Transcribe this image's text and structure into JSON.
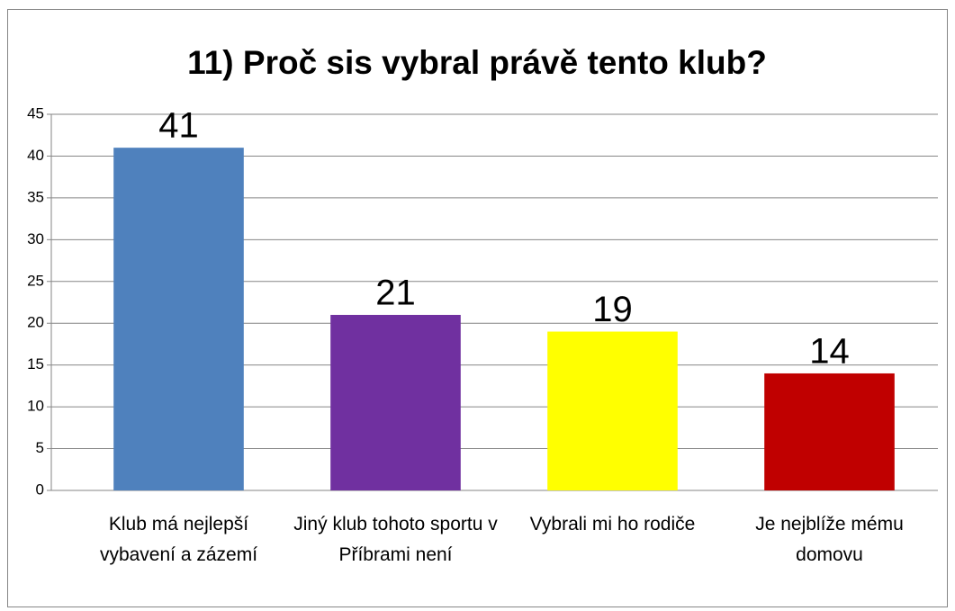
{
  "chart_data": {
    "type": "bar",
    "title": "11) Proč sis vybral právě tento klub?",
    "categories": [
      "Klub má nejlepší vybavení a zázemí",
      "Jiný klub tohoto sportu v Příbrami není",
      "Vybrali mi ho rodiče",
      "Je nejblíže mému domovu"
    ],
    "values": [
      41,
      21,
      19,
      14
    ],
    "colors": [
      "#4f81bd",
      "#7030a0",
      "#ffff00",
      "#c00000"
    ],
    "ylim": [
      0,
      45
    ],
    "yticks": [
      0,
      5,
      10,
      15,
      20,
      25,
      30,
      35,
      40,
      45
    ],
    "grid": true
  }
}
